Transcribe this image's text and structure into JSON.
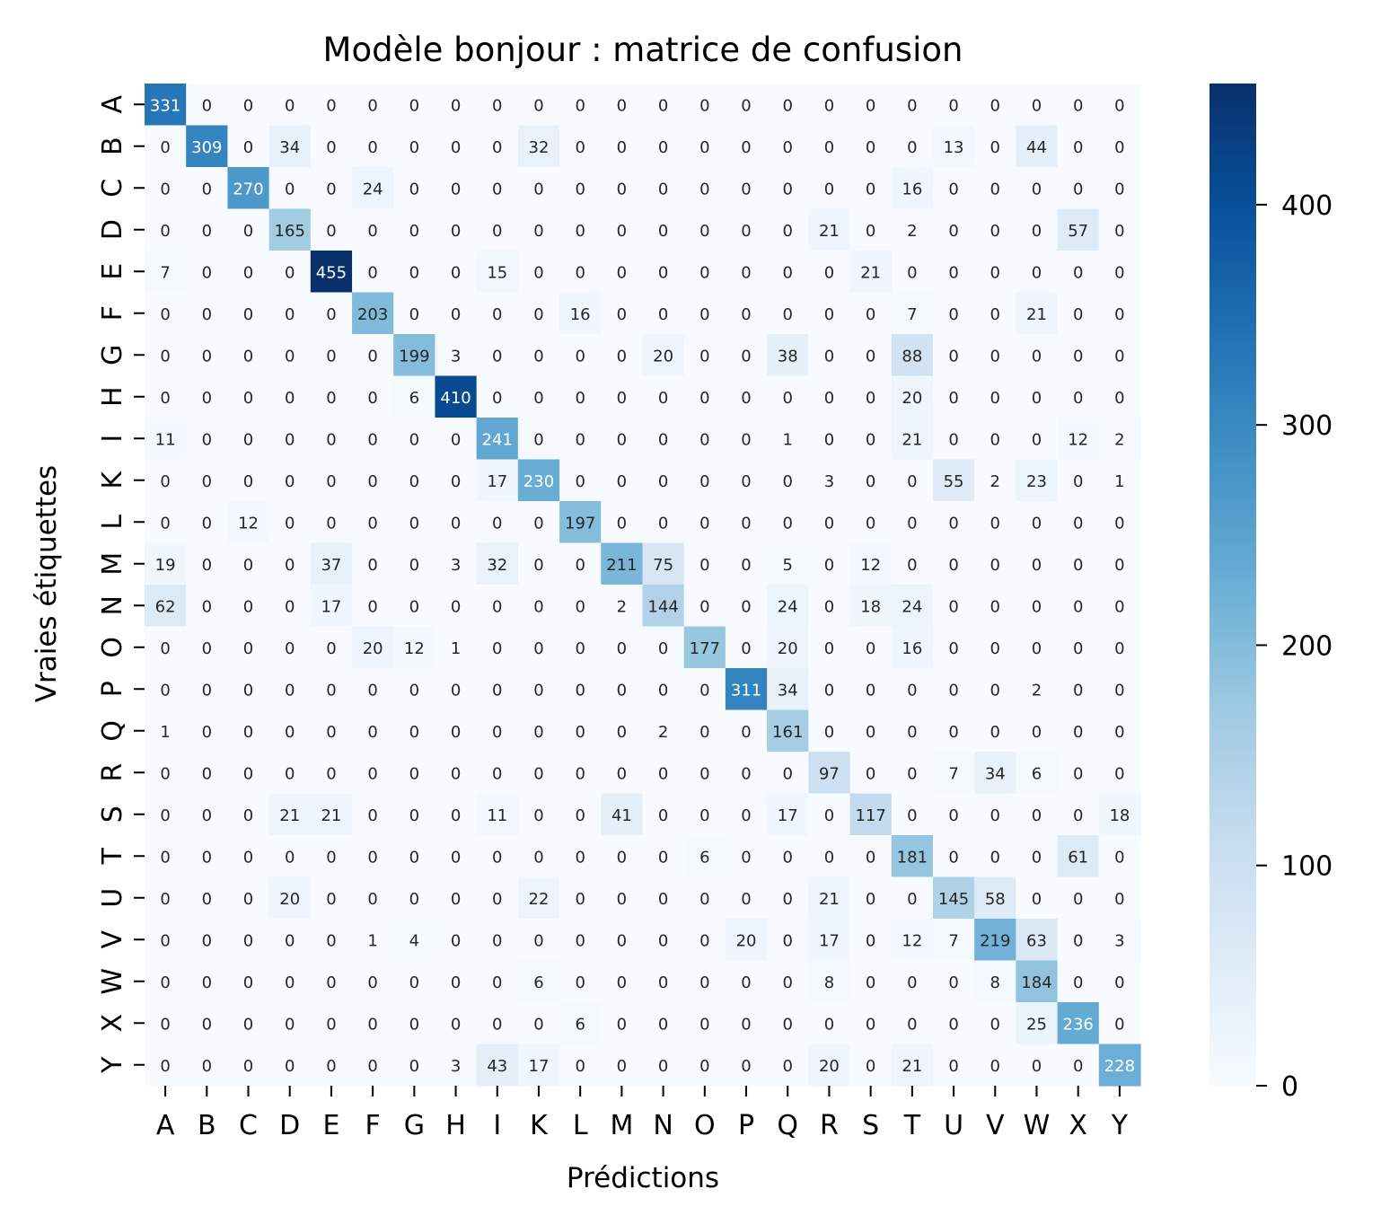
{
  "chart_data": {
    "type": "heatmap",
    "title": "Modèle bonjour : matrice de confusion",
    "xlabel": "Prédictions",
    "ylabel": "Vraies étiquettes",
    "labels": [
      "A",
      "B",
      "C",
      "D",
      "E",
      "F",
      "G",
      "H",
      "I",
      "K",
      "L",
      "M",
      "N",
      "O",
      "P",
      "Q",
      "R",
      "S",
      "T",
      "U",
      "V",
      "W",
      "X",
      "Y"
    ],
    "matrix": [
      [
        331,
        0,
        0,
        0,
        0,
        0,
        0,
        0,
        0,
        0,
        0,
        0,
        0,
        0,
        0,
        0,
        0,
        0,
        0,
        0,
        0,
        0,
        0,
        0
      ],
      [
        0,
        309,
        0,
        34,
        0,
        0,
        0,
        0,
        0,
        32,
        0,
        0,
        0,
        0,
        0,
        0,
        0,
        0,
        0,
        13,
        0,
        44,
        0,
        0
      ],
      [
        0,
        0,
        270,
        0,
        0,
        24,
        0,
        0,
        0,
        0,
        0,
        0,
        0,
        0,
        0,
        0,
        0,
        0,
        16,
        0,
        0,
        0,
        0,
        0
      ],
      [
        0,
        0,
        0,
        165,
        0,
        0,
        0,
        0,
        0,
        0,
        0,
        0,
        0,
        0,
        0,
        0,
        21,
        0,
        2,
        0,
        0,
        0,
        57,
        0
      ],
      [
        7,
        0,
        0,
        0,
        455,
        0,
        0,
        0,
        15,
        0,
        0,
        0,
        0,
        0,
        0,
        0,
        0,
        21,
        0,
        0,
        0,
        0,
        0,
        0
      ],
      [
        0,
        0,
        0,
        0,
        0,
        203,
        0,
        0,
        0,
        0,
        16,
        0,
        0,
        0,
        0,
        0,
        0,
        0,
        7,
        0,
        0,
        21,
        0,
        0
      ],
      [
        0,
        0,
        0,
        0,
        0,
        0,
        199,
        3,
        0,
        0,
        0,
        0,
        20,
        0,
        0,
        38,
        0,
        0,
        88,
        0,
        0,
        0,
        0,
        0
      ],
      [
        0,
        0,
        0,
        0,
        0,
        0,
        6,
        410,
        0,
        0,
        0,
        0,
        0,
        0,
        0,
        0,
        0,
        0,
        20,
        0,
        0,
        0,
        0,
        0
      ],
      [
        11,
        0,
        0,
        0,
        0,
        0,
        0,
        0,
        241,
        0,
        0,
        0,
        0,
        0,
        0,
        1,
        0,
        0,
        21,
        0,
        0,
        0,
        12,
        2
      ],
      [
        0,
        0,
        0,
        0,
        0,
        0,
        0,
        0,
        17,
        230,
        0,
        0,
        0,
        0,
        0,
        0,
        3,
        0,
        0,
        55,
        2,
        23,
        0,
        1
      ],
      [
        0,
        0,
        12,
        0,
        0,
        0,
        0,
        0,
        0,
        0,
        197,
        0,
        0,
        0,
        0,
        0,
        0,
        0,
        0,
        0,
        0,
        0,
        0,
        0
      ],
      [
        19,
        0,
        0,
        0,
        37,
        0,
        0,
        3,
        32,
        0,
        0,
        211,
        75,
        0,
        0,
        5,
        0,
        12,
        0,
        0,
        0,
        0,
        0,
        0
      ],
      [
        62,
        0,
        0,
        0,
        17,
        0,
        0,
        0,
        0,
        0,
        0,
        2,
        144,
        0,
        0,
        24,
        0,
        18,
        24,
        0,
        0,
        0,
        0,
        0
      ],
      [
        0,
        0,
        0,
        0,
        0,
        20,
        12,
        1,
        0,
        0,
        0,
        0,
        0,
        177,
        0,
        20,
        0,
        0,
        16,
        0,
        0,
        0,
        0,
        0
      ],
      [
        0,
        0,
        0,
        0,
        0,
        0,
        0,
        0,
        0,
        0,
        0,
        0,
        0,
        0,
        311,
        34,
        0,
        0,
        0,
        0,
        0,
        2,
        0,
        0
      ],
      [
        1,
        0,
        0,
        0,
        0,
        0,
        0,
        0,
        0,
        0,
        0,
        0,
        2,
        0,
        0,
        161,
        0,
        0,
        0,
        0,
        0,
        0,
        0,
        0
      ],
      [
        0,
        0,
        0,
        0,
        0,
        0,
        0,
        0,
        0,
        0,
        0,
        0,
        0,
        0,
        0,
        0,
        97,
        0,
        0,
        7,
        34,
        6,
        0,
        0
      ],
      [
        0,
        0,
        0,
        21,
        21,
        0,
        0,
        0,
        11,
        0,
        0,
        41,
        0,
        0,
        0,
        17,
        0,
        117,
        0,
        0,
        0,
        0,
        0,
        18
      ],
      [
        0,
        0,
        0,
        0,
        0,
        0,
        0,
        0,
        0,
        0,
        0,
        0,
        0,
        6,
        0,
        0,
        0,
        0,
        181,
        0,
        0,
        0,
        61,
        0
      ],
      [
        0,
        0,
        0,
        20,
        0,
        0,
        0,
        0,
        0,
        22,
        0,
        0,
        0,
        0,
        0,
        0,
        21,
        0,
        0,
        145,
        58,
        0,
        0,
        0
      ],
      [
        0,
        0,
        0,
        0,
        0,
        1,
        4,
        0,
        0,
        0,
        0,
        0,
        0,
        0,
        20,
        0,
        17,
        0,
        12,
        7,
        219,
        63,
        0,
        3
      ],
      [
        0,
        0,
        0,
        0,
        0,
        0,
        0,
        0,
        0,
        6,
        0,
        0,
        0,
        0,
        0,
        0,
        8,
        0,
        0,
        0,
        8,
        184,
        0,
        0
      ],
      [
        0,
        0,
        0,
        0,
        0,
        0,
        0,
        0,
        0,
        0,
        6,
        0,
        0,
        0,
        0,
        0,
        0,
        0,
        0,
        0,
        0,
        25,
        236,
        0
      ],
      [
        0,
        0,
        0,
        0,
        0,
        0,
        0,
        3,
        43,
        17,
        0,
        0,
        0,
        0,
        0,
        0,
        20,
        0,
        21,
        0,
        0,
        0,
        0,
        228
      ]
    ],
    "colorscale": "Blues",
    "vmin": 0,
    "vmax": 455,
    "colorbar_ticks": [
      0,
      100,
      200,
      300,
      400
    ]
  }
}
